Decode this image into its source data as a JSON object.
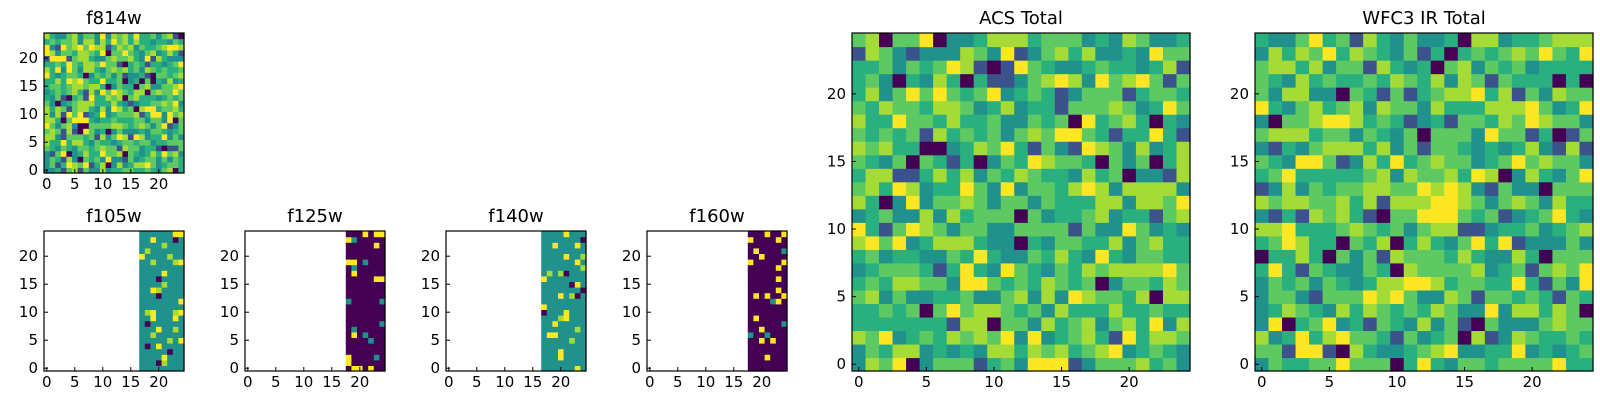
{
  "chart_data": [
    {
      "id": "f814w",
      "type": "heatmap",
      "title": "f814w",
      "grid": [
        25,
        25
      ],
      "xticks": [
        0,
        5,
        10,
        15,
        20
      ],
      "yticks": [
        0,
        5,
        10,
        15,
        20
      ],
      "fill": "noise",
      "seed": 11
    },
    {
      "id": "f105w",
      "type": "heatmap",
      "title": "f105w",
      "grid": [
        25,
        25
      ],
      "xticks": [
        0,
        5,
        10,
        15,
        20
      ],
      "yticks": [
        0,
        5,
        10,
        15,
        20
      ],
      "fill": "partial",
      "data_from_column": 17,
      "base": "teal",
      "seed": 21
    },
    {
      "id": "f125w",
      "type": "heatmap",
      "title": "f125w",
      "grid": [
        25,
        25
      ],
      "xticks": [
        0,
        5,
        10,
        15,
        20
      ],
      "yticks": [
        0,
        5,
        10,
        15,
        20
      ],
      "fill": "partial",
      "data_from_column": 18,
      "base": "purple",
      "seed": 31
    },
    {
      "id": "f140w",
      "type": "heatmap",
      "title": "f140w",
      "grid": [
        25,
        25
      ],
      "xticks": [
        0,
        5,
        10,
        15,
        20
      ],
      "yticks": [
        0,
        5,
        10,
        15,
        20
      ],
      "fill": "partial",
      "data_from_column": 17,
      "base": "teal",
      "seed": 41
    },
    {
      "id": "f160w",
      "type": "heatmap",
      "title": "f160w",
      "grid": [
        25,
        25
      ],
      "xticks": [
        0,
        5,
        10,
        15,
        20
      ],
      "yticks": [
        0,
        5,
        10,
        15,
        20
      ],
      "fill": "partial",
      "data_from_column": 18,
      "base": "purple",
      "seed": 51
    },
    {
      "id": "acs",
      "type": "heatmap",
      "title": "ACS Total",
      "grid": [
        25,
        25
      ],
      "xticks": [
        0,
        5,
        10,
        15,
        20
      ],
      "yticks": [
        0,
        5,
        10,
        15,
        20
      ],
      "fill": "noise",
      "seed": 61
    },
    {
      "id": "wfc3",
      "type": "heatmap",
      "title": "WFC3 IR Total",
      "grid": [
        25,
        25
      ],
      "xticks": [
        0,
        5,
        10,
        15,
        20
      ],
      "yticks": [
        0,
        5,
        10,
        15,
        20
      ],
      "fill": "noise_peak",
      "peak_center": [
        13,
        12
      ],
      "seed": 71
    }
  ],
  "colormap": [
    "#440154",
    "#3b528b",
    "#21918c",
    "#2ab07f",
    "#5ec962",
    "#a5db36",
    "#fde725"
  ]
}
